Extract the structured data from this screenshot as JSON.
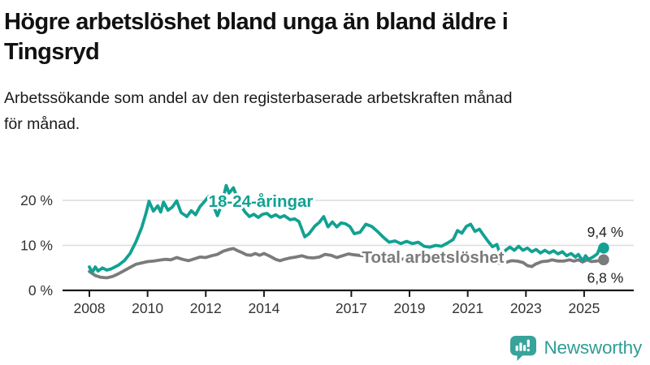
{
  "header": {
    "title_lines": [
      "Högre arbetslöshet bland unga än bland äldre i",
      "Tingsryd"
    ],
    "subtitle_lines": [
      "Arbetssökande som andel av den registerbaserade arbetskraften månad",
      "för månad."
    ]
  },
  "chart_data": {
    "type": "line",
    "title": "Högre arbetslöshet bland unga än bland äldre i Tingsryd",
    "xlabel": "",
    "ylabel": "Arbetssökande som andel av den registerbaserade arbetskraften (%)",
    "x_range": [
      2007.1,
      2026.7
    ],
    "ylim": [
      0,
      24
    ],
    "grid": "horizontal",
    "legend_position": "inline-labels-on-lines",
    "x_axis": {
      "ticks": [
        {
          "t": 2008,
          "label": "2008"
        },
        {
          "t": 2010,
          "label": "2010"
        },
        {
          "t": 2012,
          "label": "2012"
        },
        {
          "t": 2014,
          "label": "2014"
        },
        {
          "t": 2017,
          "label": "2017"
        },
        {
          "t": 2019,
          "label": "2019"
        },
        {
          "t": 2021,
          "label": "2021"
        },
        {
          "t": 2023,
          "label": "2023"
        },
        {
          "t": 2025,
          "label": "2025"
        }
      ]
    },
    "y_axis": {
      "ticks": [
        {
          "v": 0,
          "label": "0 %"
        },
        {
          "v": 10,
          "label": "10 %"
        },
        {
          "v": 20,
          "label": "20 %"
        }
      ]
    },
    "series": [
      {
        "name": "18-24-åringar",
        "color": "#12a192",
        "end_label": "9,4 %",
        "end_value": 9.4,
        "points": [
          [
            2008.0,
            5.2
          ],
          [
            2008.1,
            4.0
          ],
          [
            2008.2,
            5.2
          ],
          [
            2008.3,
            4.3
          ],
          [
            2008.45,
            5.0
          ],
          [
            2008.6,
            4.5
          ],
          [
            2008.75,
            4.8
          ],
          [
            2009.0,
            5.6
          ],
          [
            2009.2,
            6.6
          ],
          [
            2009.4,
            8.2
          ],
          [
            2009.6,
            10.8
          ],
          [
            2009.8,
            14.0
          ],
          [
            2009.95,
            17.2
          ],
          [
            2010.05,
            19.8
          ],
          [
            2010.2,
            17.6
          ],
          [
            2010.35,
            18.8
          ],
          [
            2010.45,
            17.4
          ],
          [
            2010.55,
            19.6
          ],
          [
            2010.7,
            17.8
          ],
          [
            2010.85,
            18.5
          ],
          [
            2011.0,
            19.9
          ],
          [
            2011.15,
            17.3
          ],
          [
            2011.35,
            16.4
          ],
          [
            2011.5,
            17.7
          ],
          [
            2011.65,
            16.8
          ],
          [
            2011.8,
            18.6
          ],
          [
            2011.95,
            19.7
          ],
          [
            2012.1,
            20.9
          ],
          [
            2012.25,
            19.0
          ],
          [
            2012.4,
            16.6
          ],
          [
            2012.55,
            19.2
          ],
          [
            2012.7,
            23.3
          ],
          [
            2012.8,
            21.6
          ],
          [
            2012.95,
            22.8
          ],
          [
            2013.1,
            20.2
          ],
          [
            2013.25,
            18.4
          ],
          [
            2013.35,
            17.4
          ],
          [
            2013.5,
            16.4
          ],
          [
            2013.65,
            16.9
          ],
          [
            2013.8,
            16.2
          ],
          [
            2013.95,
            16.9
          ],
          [
            2014.1,
            17.1
          ],
          [
            2014.25,
            16.3
          ],
          [
            2014.4,
            16.8
          ],
          [
            2014.55,
            16.2
          ],
          [
            2014.7,
            16.6
          ],
          [
            2014.9,
            15.7
          ],
          [
            2015.05,
            15.9
          ],
          [
            2015.2,
            15.3
          ],
          [
            2015.4,
            11.9
          ],
          [
            2015.55,
            12.6
          ],
          [
            2015.75,
            14.3
          ],
          [
            2015.9,
            15.1
          ],
          [
            2016.05,
            16.4
          ],
          [
            2016.2,
            14.1
          ],
          [
            2016.35,
            15.2
          ],
          [
            2016.5,
            14.1
          ],
          [
            2016.65,
            15.0
          ],
          [
            2016.8,
            14.8
          ],
          [
            2016.95,
            14.2
          ],
          [
            2017.1,
            12.6
          ],
          [
            2017.3,
            12.9
          ],
          [
            2017.5,
            14.7
          ],
          [
            2017.7,
            14.2
          ],
          [
            2017.9,
            13.1
          ],
          [
            2018.1,
            11.8
          ],
          [
            2018.3,
            10.7
          ],
          [
            2018.5,
            11.0
          ],
          [
            2018.7,
            10.4
          ],
          [
            2018.9,
            10.9
          ],
          [
            2019.1,
            10.4
          ],
          [
            2019.3,
            10.7
          ],
          [
            2019.5,
            9.8
          ],
          [
            2019.7,
            9.6
          ],
          [
            2019.9,
            10.0
          ],
          [
            2020.1,
            9.8
          ],
          [
            2020.3,
            10.5
          ],
          [
            2020.5,
            11.3
          ],
          [
            2020.65,
            13.3
          ],
          [
            2020.8,
            12.7
          ],
          [
            2020.95,
            14.2
          ],
          [
            2021.1,
            14.7
          ],
          [
            2021.25,
            13.1
          ],
          [
            2021.4,
            13.6
          ],
          [
            2021.55,
            12.2
          ],
          [
            2021.7,
            10.9
          ],
          [
            2021.85,
            9.7
          ],
          [
            2022.0,
            10.2
          ],
          [
            2022.15,
            7.4
          ],
          [
            2022.3,
            8.9
          ],
          [
            2022.45,
            9.6
          ],
          [
            2022.6,
            8.9
          ],
          [
            2022.75,
            9.8
          ],
          [
            2022.9,
            8.9
          ],
          [
            2023.05,
            9.4
          ],
          [
            2023.2,
            8.6
          ],
          [
            2023.35,
            9.1
          ],
          [
            2023.5,
            8.3
          ],
          [
            2023.65,
            8.9
          ],
          [
            2023.8,
            8.3
          ],
          [
            2023.95,
            8.8
          ],
          [
            2024.1,
            8.1
          ],
          [
            2024.25,
            8.6
          ],
          [
            2024.4,
            7.7
          ],
          [
            2024.55,
            8.2
          ],
          [
            2024.7,
            7.4
          ],
          [
            2024.8,
            8.0
          ],
          [
            2024.95,
            6.6
          ],
          [
            2025.05,
            7.7
          ],
          [
            2025.15,
            6.9
          ],
          [
            2025.3,
            7.4
          ],
          [
            2025.45,
            8.1
          ],
          [
            2025.55,
            9.6
          ],
          [
            2025.67,
            9.4
          ]
        ]
      },
      {
        "name": "Total arbetslöshet",
        "color": "#7b7b7b",
        "end_label": "6,8 %",
        "end_value": 6.8,
        "points": [
          [
            2008.0,
            4.2
          ],
          [
            2008.2,
            3.3
          ],
          [
            2008.4,
            2.9
          ],
          [
            2008.6,
            2.8
          ],
          [
            2008.8,
            3.1
          ],
          [
            2009.0,
            3.7
          ],
          [
            2009.2,
            4.4
          ],
          [
            2009.4,
            5.1
          ],
          [
            2009.6,
            5.8
          ],
          [
            2009.8,
            6.1
          ],
          [
            2010.0,
            6.4
          ],
          [
            2010.2,
            6.5
          ],
          [
            2010.4,
            6.7
          ],
          [
            2010.6,
            6.9
          ],
          [
            2010.8,
            6.8
          ],
          [
            2011.0,
            7.3
          ],
          [
            2011.2,
            6.9
          ],
          [
            2011.4,
            6.6
          ],
          [
            2011.6,
            7.0
          ],
          [
            2011.8,
            7.4
          ],
          [
            2012.0,
            7.3
          ],
          [
            2012.2,
            7.7
          ],
          [
            2012.4,
            8.0
          ],
          [
            2012.6,
            8.7
          ],
          [
            2012.8,
            9.1
          ],
          [
            2012.95,
            9.3
          ],
          [
            2013.1,
            8.8
          ],
          [
            2013.25,
            8.4
          ],
          [
            2013.4,
            7.9
          ],
          [
            2013.55,
            7.8
          ],
          [
            2013.7,
            8.2
          ],
          [
            2013.85,
            7.8
          ],
          [
            2014.0,
            8.2
          ],
          [
            2014.2,
            7.6
          ],
          [
            2014.4,
            6.9
          ],
          [
            2014.55,
            6.6
          ],
          [
            2014.7,
            6.9
          ],
          [
            2014.9,
            7.2
          ],
          [
            2015.1,
            7.4
          ],
          [
            2015.3,
            7.7
          ],
          [
            2015.5,
            7.3
          ],
          [
            2015.7,
            7.2
          ],
          [
            2015.9,
            7.4
          ],
          [
            2016.1,
            8.0
          ],
          [
            2016.3,
            7.8
          ],
          [
            2016.5,
            7.3
          ],
          [
            2016.7,
            7.7
          ],
          [
            2016.9,
            8.1
          ],
          [
            2017.1,
            7.9
          ],
          [
            2017.4,
            7.7
          ],
          [
            2017.7,
            7.5
          ],
          [
            2018.0,
            7.3
          ],
          [
            2018.3,
            7.1
          ],
          [
            2018.6,
            7.0
          ],
          [
            2018.9,
            6.9
          ],
          [
            2019.2,
            6.8
          ],
          [
            2019.5,
            6.8
          ],
          [
            2019.8,
            6.9
          ],
          [
            2020.1,
            7.1
          ],
          [
            2020.4,
            7.5
          ],
          [
            2020.7,
            7.6
          ],
          [
            2021.0,
            7.4
          ],
          [
            2021.3,
            7.1
          ],
          [
            2021.6,
            6.9
          ],
          [
            2021.9,
            6.5
          ],
          [
            2022.1,
            6.0
          ],
          [
            2022.3,
            6.2
          ],
          [
            2022.5,
            6.6
          ],
          [
            2022.7,
            6.5
          ],
          [
            2022.9,
            6.2
          ],
          [
            2023.05,
            5.5
          ],
          [
            2023.2,
            5.3
          ],
          [
            2023.35,
            5.9
          ],
          [
            2023.55,
            6.4
          ],
          [
            2023.75,
            6.5
          ],
          [
            2023.9,
            6.8
          ],
          [
            2024.1,
            6.5
          ],
          [
            2024.3,
            6.5
          ],
          [
            2024.5,
            6.8
          ],
          [
            2024.65,
            6.5
          ],
          [
            2024.8,
            6.8
          ],
          [
            2024.95,
            6.3
          ],
          [
            2025.1,
            6.8
          ],
          [
            2025.25,
            6.4
          ],
          [
            2025.4,
            6.5
          ],
          [
            2025.55,
            6.6
          ],
          [
            2025.67,
            6.8
          ]
        ]
      }
    ]
  },
  "footer": {
    "brand": "Newsworthy",
    "logo_icon": "bar-chart-speech-bubble"
  },
  "colors": {
    "accent_teal": "#12a192",
    "line_gray": "#7b7b7b",
    "grid": "#dcdcdc",
    "axis": "#1a1a1a",
    "tick_text": "#333333",
    "logo_teal": "#38a39a",
    "wordmark_teal": "#2f9d95"
  }
}
